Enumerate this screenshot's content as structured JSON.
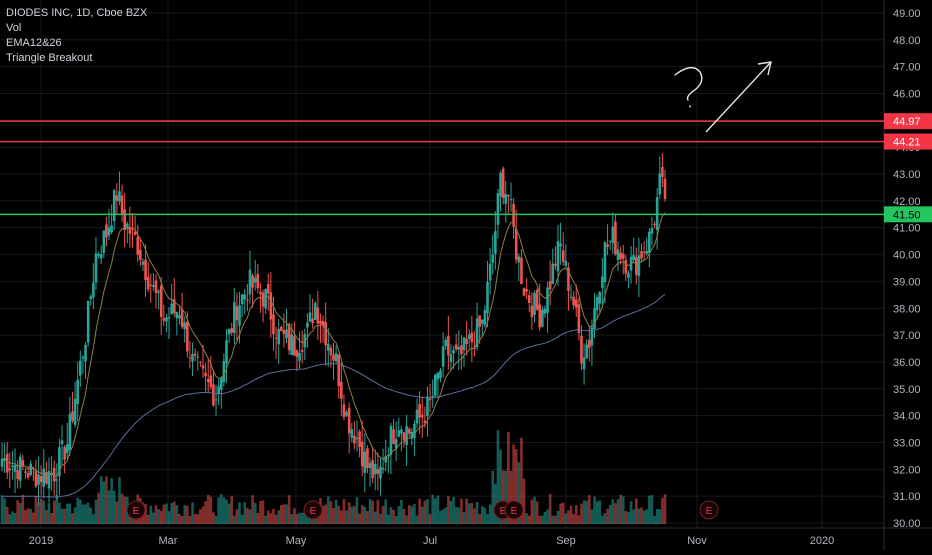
{
  "chart_data": {
    "type": "candlestick",
    "symbol_header": "DIODES INC, 1D, Cboe BZX",
    "indicators": [
      "Vol",
      "EMA12&26",
      "Triangle Breakout"
    ],
    "y_axis": {
      "min": 30.0,
      "max": 49.5,
      "ticks": [
        "30.00",
        "31.00",
        "32.00",
        "33.00",
        "34.00",
        "35.00",
        "36.00",
        "37.00",
        "38.00",
        "39.00",
        "40.00",
        "41.00",
        "42.00",
        "43.00",
        "44.00",
        "45.00",
        "46.00",
        "47.00",
        "48.00",
        "49.00"
      ],
      "side": "right"
    },
    "x_axis": {
      "ticks": [
        "2019",
        "Mar",
        "May",
        "Jul",
        "Sep",
        "Nov",
        "2020"
      ]
    },
    "horizontal_levels": [
      {
        "value": 44.97,
        "label": "44.97",
        "color": "#f23645"
      },
      {
        "value": 44.21,
        "label": "44.21",
        "color": "#f23645"
      },
      {
        "value": 41.5,
        "label": "41.50",
        "color": "#22c55e"
      }
    ],
    "annotations": [
      {
        "kind": "question-mark",
        "text": "?"
      },
      {
        "kind": "arrow-up-right"
      }
    ],
    "earnings_markers": {
      "label": "E",
      "count": 5
    },
    "ohlc_anchor_closes": [
      [
        0,
        32.4
      ],
      [
        8,
        32.0
      ],
      [
        14,
        31.8
      ],
      [
        20,
        31.9
      ],
      [
        25,
        33.0
      ],
      [
        32,
        37.0
      ],
      [
        36,
        40.0
      ],
      [
        40,
        40.8
      ],
      [
        44,
        42.3
      ],
      [
        47,
        41.2
      ],
      [
        52,
        40.4
      ],
      [
        56,
        39.2
      ],
      [
        62,
        37.6
      ],
      [
        68,
        38.0
      ],
      [
        73,
        36.0
      ],
      [
        78,
        35.2
      ],
      [
        82,
        34.8
      ],
      [
        86,
        36.6
      ],
      [
        90,
        38.1
      ],
      [
        95,
        38.9
      ],
      [
        101,
        38.4
      ],
      [
        106,
        37.0
      ],
      [
        112,
        36.6
      ],
      [
        117,
        37.1
      ],
      [
        120,
        38.2
      ],
      [
        124,
        37.1
      ],
      [
        128,
        36.0
      ],
      [
        132,
        34.0
      ],
      [
        136,
        33.2
      ],
      [
        140,
        32.1
      ],
      [
        144,
        31.6
      ],
      [
        148,
        33.0
      ],
      [
        152,
        33.8
      ],
      [
        156,
        33.4
      ],
      [
        160,
        33.9
      ],
      [
        164,
        34.4
      ],
      [
        170,
        36.4
      ],
      [
        175,
        36.1
      ],
      [
        180,
        36.8
      ],
      [
        184,
        37.4
      ],
      [
        188,
        40.0
      ],
      [
        191,
        42.8
      ],
      [
        194,
        42.2
      ],
      [
        197,
        40.2
      ],
      [
        200,
        38.8
      ],
      [
        203,
        38.2
      ],
      [
        206,
        37.8
      ],
      [
        209,
        38.6
      ],
      [
        212,
        39.8
      ],
      [
        214,
        40.3
      ],
      [
        216,
        39.4
      ],
      [
        219,
        38.2
      ],
      [
        222,
        36.4
      ],
      [
        225,
        36.8
      ],
      [
        228,
        38.6
      ],
      [
        231,
        40.2
      ],
      [
        234,
        40.6
      ],
      [
        236,
        40.3
      ],
      [
        239,
        39.8
      ],
      [
        242,
        39.6
      ],
      [
        245,
        40.1
      ],
      [
        248,
        40.6
      ],
      [
        250,
        41.4
      ],
      [
        252,
        42.6
      ],
      [
        254,
        42.2
      ]
    ],
    "volume_note": "volume bars shown at bottom in green (up) and red (down)"
  },
  "colors": {
    "up": "#26a69a",
    "down": "#ef5350",
    "ema_fast": "#8d7d4a",
    "ema_slow": "#5a6f9a",
    "grid": "#16191f",
    "axis_text": "#b2b5be"
  }
}
